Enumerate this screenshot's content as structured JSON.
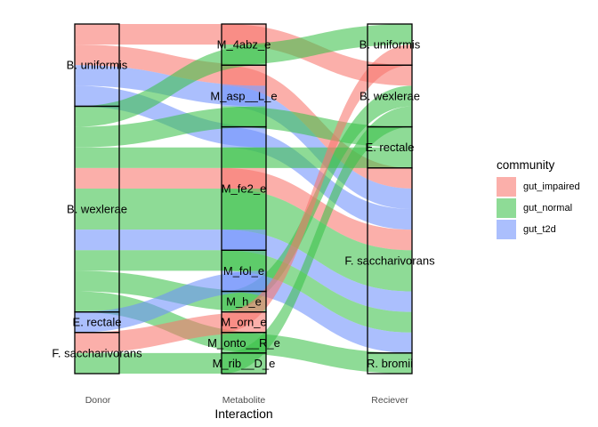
{
  "chart_data": {
    "type": "alluvial",
    "xlabel": "Interaction",
    "axes": [
      "Donor",
      "Metabolite",
      "Reciever"
    ],
    "legend_title": "community",
    "legend_position": "right",
    "grid": false,
    "groups": [
      {
        "name": "gut_impaired",
        "color": "#F8766D"
      },
      {
        "name": "gut_normal",
        "color": "#3DC14A"
      },
      {
        "name": "gut_t2d",
        "color": "#6F91FB"
      }
    ],
    "strata": {
      "Donor": [
        "B. uniformis",
        "B. wexlerae",
        "E. rectale",
        "F. saccharivorans"
      ],
      "Metabolite": [
        "M_4abz_e",
        "M_asp__L_e",
        "M_fe2_e",
        "M_fol_e",
        "M_h_e",
        "M_orn_e",
        "M_onto__R_e",
        "M_rib__D_e"
      ],
      "Reciever": [
        "B. uniformis",
        "B. wexlerae",
        "E. rectale",
        "F. saccharivorans",
        "R. bromii"
      ]
    },
    "flows": [
      {
        "donor": "B. uniformis",
        "metabolite": "M_4abz_e",
        "receiver": "B. wexlerae",
        "group": "gut_impaired",
        "value": 1
      },
      {
        "donor": "B. uniformis",
        "metabolite": "M_asp__L_e",
        "receiver": "F. saccharivorans",
        "group": "gut_impaired",
        "value": 1
      },
      {
        "donor": "B. uniformis",
        "metabolite": "M_asp__L_e",
        "receiver": "F. saccharivorans",
        "group": "gut_t2d",
        "value": 1
      },
      {
        "donor": "B. uniformis",
        "metabolite": "M_fe2_e",
        "receiver": "F. saccharivorans",
        "group": "gut_t2d",
        "value": 1
      },
      {
        "donor": "B. wexlerae",
        "metabolite": "M_4abz_e",
        "receiver": "B. uniformis",
        "group": "gut_normal",
        "value": 1
      },
      {
        "donor": "B. wexlerae",
        "metabolite": "M_asp__L_e",
        "receiver": "E. rectale",
        "group": "gut_normal",
        "value": 1
      },
      {
        "donor": "B. wexlerae",
        "metabolite": "M_fe2_e",
        "receiver": "E. rectale",
        "group": "gut_normal",
        "value": 1
      },
      {
        "donor": "B. wexlerae",
        "metabolite": "M_fe2_e",
        "receiver": "F. saccharivorans",
        "group": "gut_normal",
        "value": 2
      },
      {
        "donor": "B. wexlerae",
        "metabolite": "M_fe2_e",
        "receiver": "F. saccharivorans",
        "group": "gut_impaired",
        "value": 1
      },
      {
        "donor": "B. wexlerae",
        "metabolite": "M_fe2_e",
        "receiver": "F. saccharivorans",
        "group": "gut_t2d",
        "value": 1
      },
      {
        "donor": "B. wexlerae",
        "metabolite": "M_fol_e",
        "receiver": "F. saccharivorans",
        "group": "gut_normal",
        "value": 1
      },
      {
        "donor": "B. wexlerae",
        "metabolite": "M_h_e",
        "receiver": "B. wexlerae",
        "group": "gut_normal",
        "value": 1
      },
      {
        "donor": "B. wexlerae",
        "metabolite": "M_onto__R_e",
        "receiver": "R. bromii",
        "group": "gut_normal",
        "value": 1
      },
      {
        "donor": "E. rectale",
        "metabolite": "M_fol_e",
        "receiver": "F. saccharivorans",
        "group": "gut_t2d",
        "value": 1
      },
      {
        "donor": "F. saccharivorans",
        "metabolite": "M_orn_e",
        "receiver": "B. uniformis",
        "group": "gut_impaired",
        "value": 1
      },
      {
        "donor": "F. saccharivorans",
        "metabolite": "M_rib__D_e",
        "receiver": "B. wexlerae",
        "group": "gut_normal",
        "value": 1
      }
    ]
  }
}
